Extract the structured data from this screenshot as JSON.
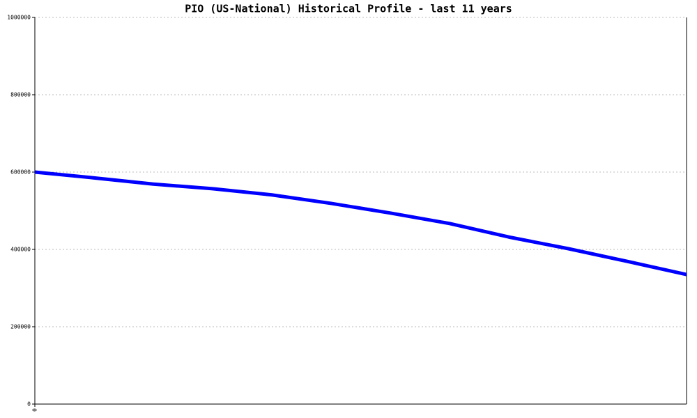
{
  "chart_data": {
    "type": "line",
    "title": "PIO (US-National) Historical Profile - last 11 years",
    "x": [
      0,
      1,
      2,
      3,
      4,
      5,
      6,
      7,
      8,
      9,
      10,
      11
    ],
    "series": [
      {
        "color": "#0000ff",
        "values": [
          600000,
          585000,
          569000,
          557000,
          541000,
          519000,
          494000,
          467000,
          432000,
          402000,
          369000,
          335000
        ]
      }
    ],
    "xlim": [
      0,
      11
    ],
    "xticks": [
      0
    ],
    "ylim": [
      0,
      1000000
    ],
    "yticks": [
      0,
      200000,
      400000,
      600000,
      800000,
      1000000
    ],
    "grid": true
  }
}
